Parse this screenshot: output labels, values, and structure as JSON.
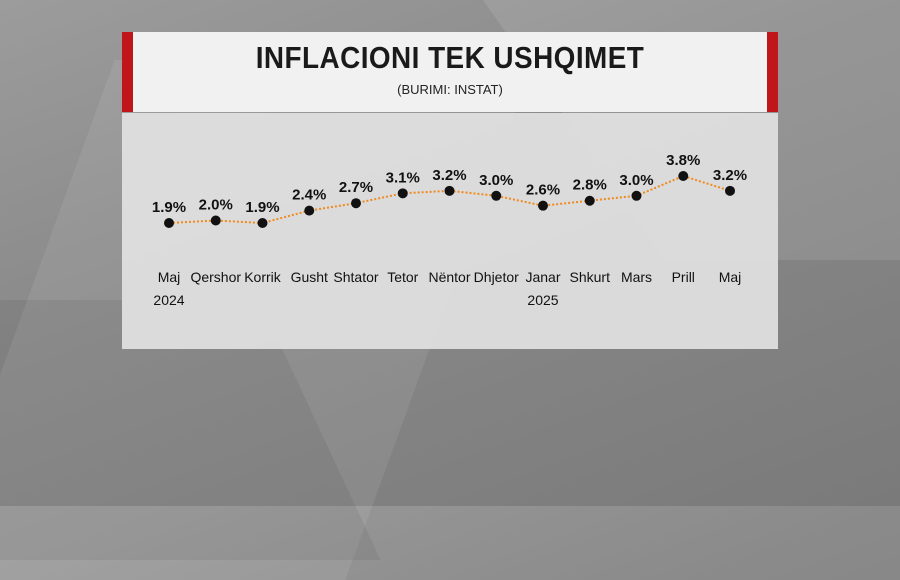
{
  "header": {
    "title": "INFLACIONI TEK USHQIMET",
    "subtitle": "(BURIMI: INSTAT)"
  },
  "colors": {
    "accent": "#c0161b",
    "line": "#f08a1c",
    "point": "#111111"
  },
  "chart_data": {
    "type": "line",
    "title": "INFLACIONI TEK USHQIMET",
    "subtitle": "(BURIMI: INSTAT)",
    "categories": [
      {
        "label": "Maj",
        "year": "2024"
      },
      {
        "label": "Qershor",
        "year": ""
      },
      {
        "label": "Korrik",
        "year": ""
      },
      {
        "label": "Gusht",
        "year": ""
      },
      {
        "label": "Shtator",
        "year": ""
      },
      {
        "label": "Tetor",
        "year": ""
      },
      {
        "label": "Nëntor",
        "year": ""
      },
      {
        "label": "Dhjetor",
        "year": ""
      },
      {
        "label": "Janar",
        "year": "2025"
      },
      {
        "label": "Shkurt",
        "year": ""
      },
      {
        "label": "Mars",
        "year": ""
      },
      {
        "label": "Prill",
        "year": ""
      },
      {
        "label": "Maj",
        "year": ""
      }
    ],
    "values": [
      1.9,
      2.0,
      1.9,
      2.4,
      2.7,
      3.1,
      3.2,
      3.0,
      2.6,
      2.8,
      3.0,
      3.8,
      3.2
    ],
    "value_labels": [
      "1.9%",
      "2.0%",
      "1.9%",
      "2.4%",
      "2.7%",
      "3.1%",
      "3.2%",
      "3.0%",
      "2.6%",
      "2.8%",
      "3.0%",
      "3.8%",
      "3.2%"
    ],
    "unit": "%",
    "grid": false,
    "legend": "none"
  }
}
